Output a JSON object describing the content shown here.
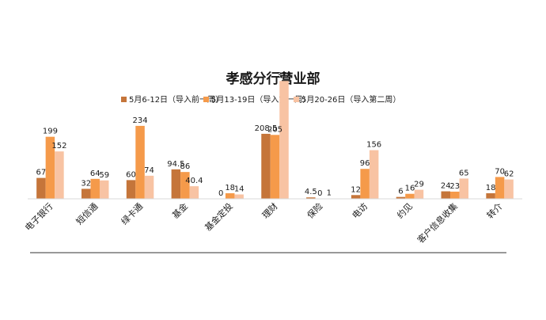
{
  "chart_data": {
    "type": "bar",
    "title": "孝感分行营业部",
    "categories": [
      "电子银行",
      "短信通",
      "绿卡通",
      "基金",
      "基金定投",
      "理财",
      "保险",
      "电访",
      "约见",
      "客户信息收集",
      "转介"
    ],
    "series": [
      {
        "name": "5月6-12日（导入前一周）",
        "color": "#C5753A",
        "values": [
          67,
          32,
          60,
          94.5,
          0,
          208.5,
          4.5,
          12,
          6,
          24,
          18
        ],
        "labels": [
          "67",
          "32",
          "60",
          "94.5",
          "0",
          "208.5",
          "4.5",
          "12",
          "6",
          "24",
          "18"
        ]
      },
      {
        "name": "5月13-19日（导入第一周）",
        "color": "#F59A4A",
        "values": [
          199,
          64,
          234,
          86,
          18,
          205,
          0,
          96,
          16,
          23,
          70
        ],
        "labels": [
          "199",
          "64",
          "234",
          "86",
          "18",
          "205",
          "0",
          "96",
          "16",
          "23",
          "70"
        ]
      },
      {
        "name": "5月20-26日（导入第二周）",
        "color": "#F8C3A3",
        "values": [
          152,
          59,
          74,
          40.4,
          14,
          378,
          1,
          156,
          29,
          65,
          62
        ],
        "labels": [
          "152",
          "59",
          "74",
          "40.4",
          "14",
          "378",
          "1",
          "156",
          "29",
          "65",
          "62"
        ]
      }
    ],
    "ylim": [
      0,
      400
    ],
    "grid": false,
    "legend_position": "top"
  }
}
